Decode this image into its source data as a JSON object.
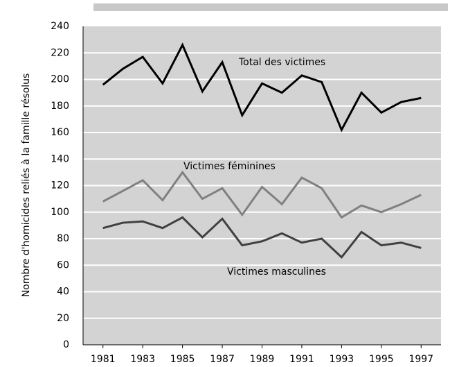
{
  "chart_data": {
    "type": "line",
    "ylabel": "Nombre d'homicides reliés à la famille résolus",
    "x": [
      1981,
      1982,
      1983,
      1984,
      1985,
      1986,
      1987,
      1988,
      1989,
      1990,
      1991,
      1992,
      1993,
      1994,
      1995,
      1996,
      1997
    ],
    "xlim": [
      1980,
      1998
    ],
    "xticks": [
      1981,
      1983,
      1985,
      1987,
      1989,
      1991,
      1993,
      1995,
      1997
    ],
    "ylim": [
      0,
      240
    ],
    "yticks": [
      0,
      20,
      40,
      60,
      80,
      100,
      120,
      140,
      160,
      180,
      200,
      220,
      240
    ],
    "grid": true,
    "series": [
      {
        "name": "Total des victimes",
        "color": "#000000",
        "values": [
          196,
          208,
          217,
          197,
          226,
          191,
          213,
          173,
          197,
          190,
          203,
          198,
          162,
          190,
          175,
          183,
          186
        ]
      },
      {
        "name": "Victimes féminines",
        "color": "#808080",
        "values": [
          108,
          116,
          124,
          109,
          130,
          110,
          118,
          98,
          119,
          106,
          126,
          118,
          96,
          105,
          100,
          106,
          113
        ]
      },
      {
        "name": "Victimes masculines",
        "color": "#404040",
        "values": [
          88,
          92,
          93,
          88,
          96,
          81,
          95,
          75,
          78,
          84,
          77,
          80,
          66,
          85,
          75,
          77,
          73
        ]
      }
    ]
  }
}
